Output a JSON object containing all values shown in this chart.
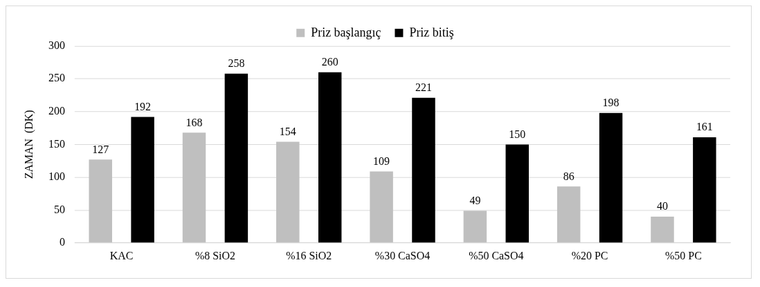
{
  "chart_data": {
    "type": "bar",
    "ylabel": "ZAMAN  (DK)",
    "categories": [
      "KAC",
      "%8 SiO2",
      "%16 SiO2",
      "%30 CaSO4",
      "%50 CaSO4",
      "%20 PC",
      "%50 PC"
    ],
    "series": [
      {
        "name": "Priz başlangıç",
        "color": "#bfbfbf",
        "values": [
          127,
          168,
          154,
          109,
          49,
          86,
          40
        ]
      },
      {
        "name": "Priz bitiş",
        "color": "#000000",
        "values": [
          192,
          258,
          260,
          221,
          150,
          198,
          161
        ]
      }
    ],
    "ylim": [
      0,
      300
    ],
    "yticks": [
      0,
      50,
      100,
      150,
      200,
      250,
      300
    ],
    "grid": "y",
    "legend": "top",
    "data_labels": true
  }
}
